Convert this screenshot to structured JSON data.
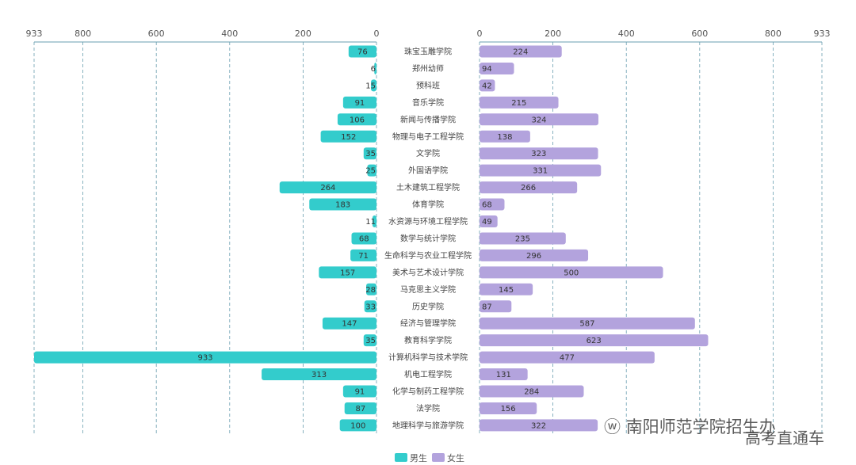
{
  "chart_data": {
    "type": "bar",
    "orientation": "horizontal-butterfly",
    "categories": [
      "珠宝玉雕学院",
      "郑州幼师",
      "预科班",
      "音乐学院",
      "新闻与传播学院",
      "物理与电子工程学院",
      "文学院",
      "外国语学院",
      "土木建筑工程学院",
      "体育学院",
      "水资源与环境工程学院",
      "数学与统计学院",
      "生命科学与农业工程学院",
      "美术与艺术设计学院",
      "马克思主义学院",
      "历史学院",
      "经济与管理学院",
      "教育科学学院",
      "计算机科学与技术学院",
      "机电工程学院",
      "化学与制药工程学院",
      "法学院",
      "地理科学与旅游学院"
    ],
    "series": [
      {
        "name": "男生",
        "color": "#33cccc",
        "side": "left",
        "values": [
          76,
          6,
          15,
          91,
          106,
          152,
          35,
          25,
          264,
          183,
          11,
          68,
          71,
          157,
          28,
          33,
          147,
          35,
          933,
          313,
          91,
          87,
          100
        ]
      },
      {
        "name": "女生",
        "color": "#b3a3dd",
        "side": "right",
        "values": [
          224,
          94,
          42,
          215,
          324,
          138,
          323,
          331,
          266,
          68,
          49,
          235,
          296,
          500,
          145,
          87,
          587,
          623,
          477,
          131,
          284,
          156,
          322
        ]
      }
    ],
    "xlim": [
      0,
      933
    ],
    "ticks": [
      "0",
      "200",
      "400",
      "600",
      "800",
      "933"
    ],
    "grid": true,
    "legend": "bottom"
  },
  "watermark": {
    "line1": "南阳师范学院招生办",
    "line2": "高考直通车"
  }
}
